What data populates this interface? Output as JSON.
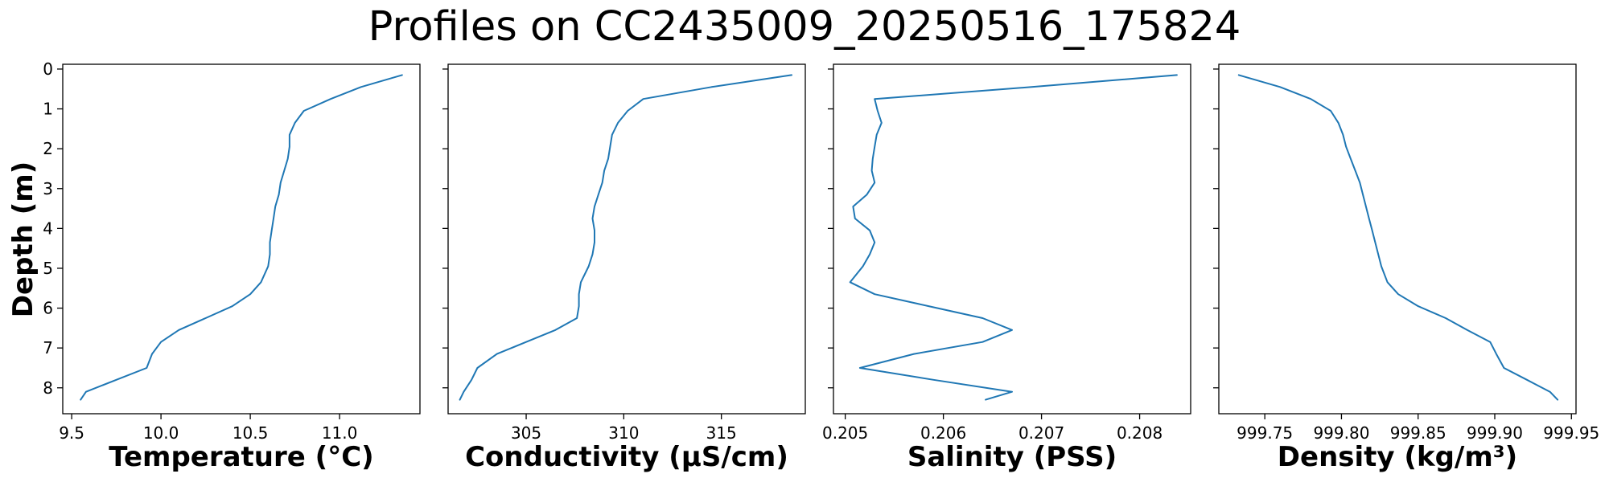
{
  "chart_data": {
    "type": "line",
    "title": "Profiles on CC2435009_20250516_175824",
    "ylabel": "Depth (m)",
    "ylim": [
      8.65,
      -0.12
    ],
    "y_inverted": true,
    "y_ticks": [
      "0",
      "1",
      "2",
      "3",
      "4",
      "5",
      "6",
      "7",
      "8"
    ],
    "line_color": "#1f77b4",
    "depth": [
      0.15,
      0.45,
      0.75,
      1.05,
      1.35,
      1.65,
      1.95,
      2.25,
      2.55,
      2.85,
      3.15,
      3.45,
      3.75,
      4.05,
      4.35,
      4.65,
      4.95,
      5.35,
      5.65,
      5.95,
      6.25,
      6.55,
      6.85,
      7.15,
      7.5,
      7.8,
      8.1,
      8.3
    ],
    "panels": [
      {
        "xlabel": "Temperature (°C)",
        "xlim": [
          9.45,
          11.45
        ],
        "x_ticks": [
          "9.5",
          "10.0",
          "10.5",
          "11.0"
        ],
        "values": [
          11.35,
          11.12,
          10.95,
          10.8,
          10.75,
          10.72,
          10.72,
          10.71,
          10.69,
          10.67,
          10.66,
          10.64,
          10.63,
          10.62,
          10.61,
          10.61,
          10.6,
          10.56,
          10.5,
          10.4,
          10.25,
          10.1,
          10.0,
          9.95,
          9.92,
          9.75,
          9.58,
          9.55
        ]
      },
      {
        "xlabel": "Conductivity (µS/cm)",
        "xlim": [
          301.0,
          319.3
        ],
        "x_ticks": [
          "305",
          "310",
          "315"
        ],
        "values": [
          318.6,
          314.5,
          311.0,
          310.2,
          309.7,
          309.4,
          309.3,
          309.2,
          309.0,
          308.9,
          308.7,
          308.5,
          308.4,
          308.5,
          308.5,
          308.4,
          308.2,
          307.8,
          307.7,
          307.7,
          307.6,
          306.5,
          305.0,
          303.5,
          302.5,
          302.2,
          301.8,
          301.6
        ]
      },
      {
        "xlabel": "Salinity (PSS)",
        "xlim": [
          0.20488,
          0.20852
        ],
        "x_ticks": [
          "0.205",
          "0.206",
          "0.207",
          "0.208"
        ],
        "values": [
          0.20838,
          0.2069,
          0.2053,
          0.20533,
          0.20537,
          0.20532,
          0.2053,
          0.20528,
          0.20527,
          0.2053,
          0.20522,
          0.20508,
          0.2051,
          0.20525,
          0.2053,
          0.20525,
          0.20518,
          0.20505,
          0.2053,
          0.20585,
          0.2064,
          0.2067,
          0.2064,
          0.2057,
          0.20515,
          0.2059,
          0.2067,
          0.20643
        ]
      },
      {
        "xlabel": "Density (kg/m³)",
        "xlim": [
          999.72,
          999.953
        ],
        "x_ticks": [
          "999.75",
          "999.80",
          "999.85",
          "999.90",
          "999.95"
        ],
        "values": [
          999.733,
          999.76,
          999.78,
          999.793,
          999.798,
          999.801,
          999.803,
          999.806,
          999.809,
          999.812,
          999.814,
          999.816,
          999.818,
          999.82,
          999.822,
          999.824,
          999.826,
          999.83,
          999.837,
          999.85,
          999.868,
          999.882,
          999.897,
          999.901,
          999.906,
          999.921,
          999.936,
          999.941
        ]
      }
    ]
  }
}
